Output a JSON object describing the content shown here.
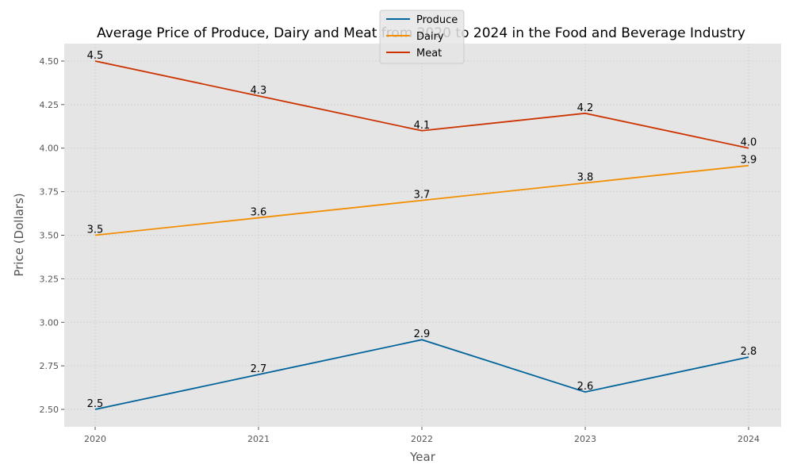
{
  "chart_data": {
    "type": "line",
    "title": "Average Price of Produce, Dairy and Meat from 2020 to 2024 in the Food and Beverage Industry",
    "xlabel": "Year",
    "ylabel": "Price (Dollars)",
    "categories": [
      "2020",
      "2021",
      "2022",
      "2023",
      "2024"
    ],
    "ylim": [
      2.4,
      4.6
    ],
    "yticks": [
      "2.50",
      "2.75",
      "3.00",
      "3.25",
      "3.50",
      "3.75",
      "4.00",
      "4.25",
      "4.50"
    ],
    "grid": true,
    "legend_position": "top-center",
    "series": [
      {
        "name": "Produce",
        "color": "#00639a",
        "values": [
          2.5,
          2.7,
          2.9,
          2.6,
          2.8
        ],
        "labels": [
          "2.5",
          "2.7",
          "2.9",
          "2.6",
          "2.8"
        ]
      },
      {
        "name": "Dairy",
        "color": "#f28e00",
        "values": [
          3.5,
          3.6,
          3.7,
          3.8,
          3.9
        ],
        "labels": [
          "3.5",
          "3.6",
          "3.7",
          "3.8",
          "3.9"
        ]
      },
      {
        "name": "Meat",
        "color": "#cc3300",
        "values": [
          4.5,
          4.3,
          4.1,
          4.2,
          4.0
        ],
        "labels": [
          "4.5",
          "4.3",
          "4.1",
          "4.2",
          "4.0"
        ]
      }
    ],
    "plot_background": "#e5e5e5"
  }
}
